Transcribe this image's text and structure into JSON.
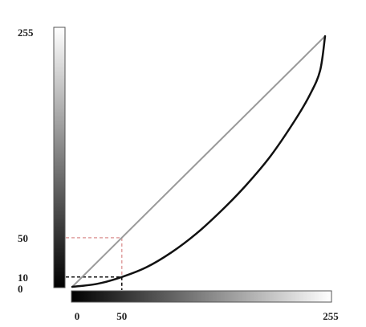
{
  "chart_data": {
    "type": "line",
    "title": "",
    "xlabel": "",
    "ylabel": "",
    "xlim": [
      0,
      255
    ],
    "ylim": [
      0,
      255
    ],
    "grid": false,
    "legend": "none",
    "x_ticks": [
      "0",
      "50",
      "255"
    ],
    "y_ticks": [
      "0",
      "10",
      "50",
      "255"
    ],
    "series": [
      {
        "style": "straight gray line",
        "color": "#9a9a9a",
        "x": [
          0,
          255
        ],
        "y": [
          0,
          255
        ]
      },
      {
        "style": "black curve",
        "color": "#111111",
        "x": [
          0,
          25,
          50,
          75,
          100,
          125,
          150,
          175,
          200,
          225,
          240,
          250,
          255
        ],
        "y": [
          0,
          3,
          10,
          20,
          35,
          54,
          77,
          103,
          133,
          170,
          196,
          220,
          255
        ]
      }
    ],
    "annotations": [
      {
        "type": "dashed-guide",
        "color": "#e0a0a0",
        "x": 50,
        "y": 50
      },
      {
        "type": "dashed-guide",
        "color": "#111111",
        "x": 50,
        "y": 10
      }
    ],
    "gradient_bars": {
      "from_color": "#000000",
      "to_color": "#ffffff"
    }
  }
}
